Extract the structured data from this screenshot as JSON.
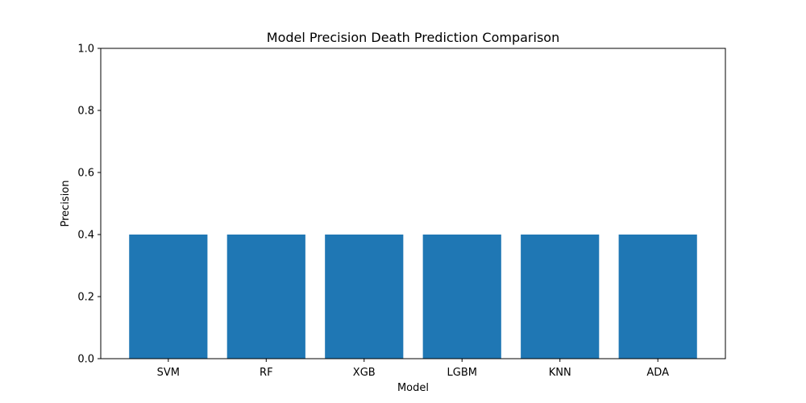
{
  "chart_data": {
    "type": "bar",
    "title": "Model Precision Death Prediction Comparison",
    "xlabel": "Model",
    "ylabel": "Precision",
    "categories": [
      "SVM",
      "RF",
      "XGB",
      "LGBM",
      "KNN",
      "ADA"
    ],
    "values": [
      0.4,
      0.4,
      0.4,
      0.4,
      0.4,
      0.4
    ],
    "ylim": [
      0,
      1.0
    ],
    "yticks": [
      "0.0",
      "0.2",
      "0.4",
      "0.6",
      "0.8",
      "1.0"
    ],
    "grid": false,
    "legend": "none",
    "bar_color": "#1f77b4"
  }
}
